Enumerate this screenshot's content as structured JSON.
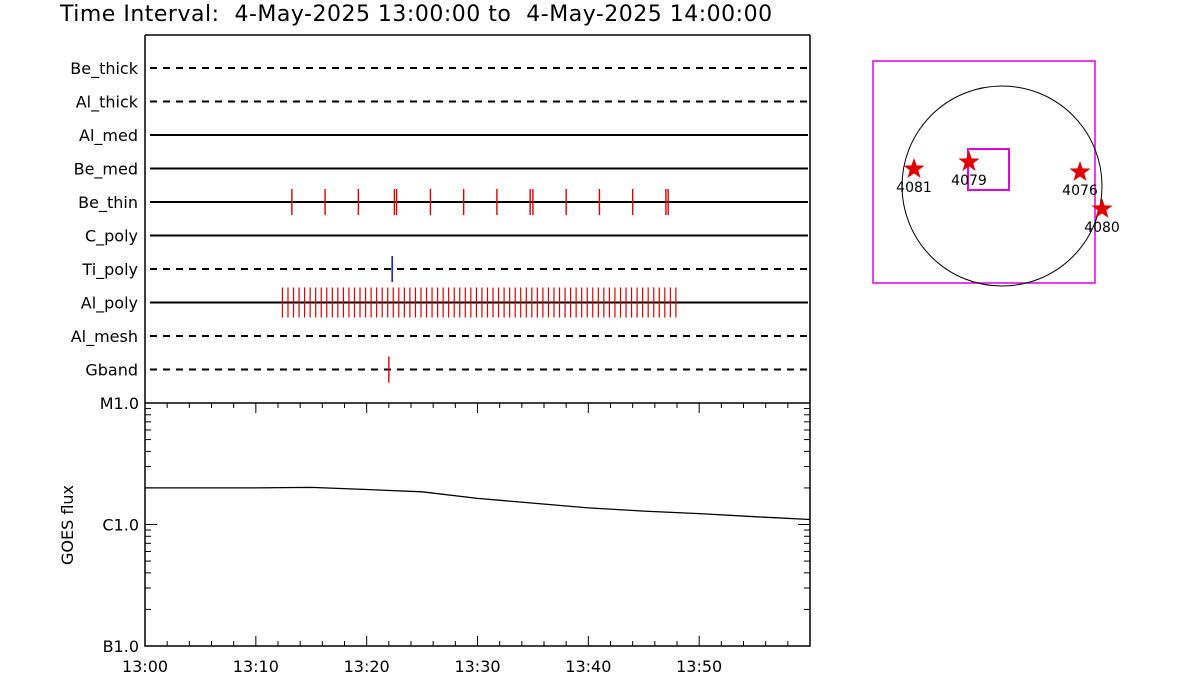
{
  "title": "Time Interval:  4-May-2025 13:00:00 to  4-May-2025 14:00:00",
  "colors": {
    "event": "#e00000",
    "event_blue": "#0000cc",
    "box": "#e000e0",
    "line": "#000000"
  },
  "chart_data": [
    {
      "type": "timeline",
      "time_range": [
        "13:00",
        "14:00"
      ],
      "rows": [
        {
          "name": "Be_thick",
          "style": "dashed",
          "events": []
        },
        {
          "name": "Al_thick",
          "style": "dashed",
          "events": []
        },
        {
          "name": "Al_med",
          "style": "solid",
          "events": []
        },
        {
          "name": "Be_med",
          "style": "solid",
          "events": []
        },
        {
          "name": "Be_thin",
          "style": "solid",
          "color": "#e00000",
          "events": [
            13.25,
            16.25,
            19.25,
            22.5,
            22.7,
            25.75,
            28.75,
            31.75,
            34.75,
            35.0,
            38.0,
            41.0,
            44.0,
            47.0,
            47.2
          ]
        },
        {
          "name": "C_poly",
          "style": "solid",
          "events": []
        },
        {
          "name": "Ti_poly",
          "style": "dashed",
          "color": "#0000cc",
          "events": [
            22.3
          ]
        },
        {
          "name": "Al_poly",
          "style": "solid",
          "color": "#e00000",
          "dense_start": 12.4,
          "dense_end": 47.9,
          "dense_step": 0.5,
          "events": []
        },
        {
          "name": "Al_mesh",
          "style": "dashed",
          "events": []
        },
        {
          "name": "Gband",
          "style": "dashed",
          "color": "#e00000",
          "events": [
            22.0
          ]
        }
      ]
    },
    {
      "type": "line",
      "ylabel": "GOES flux",
      "yscale": "log",
      "yticks": [
        "B1.0",
        "C1.0",
        "M1.0"
      ],
      "ylim": [
        1e-07,
        1e-05
      ],
      "xticks": [
        "13:00",
        "13:10",
        "13:20",
        "13:30",
        "13:40",
        "13:50"
      ],
      "x": [
        0,
        5,
        10,
        15,
        20,
        25,
        30,
        35,
        40,
        45,
        50,
        55,
        60
      ],
      "y": [
        2e-06,
        2e-06,
        2e-06,
        2.02e-06,
        1.94e-06,
        1.86e-06,
        1.64e-06,
        1.5e-06,
        1.37e-06,
        1.29e-06,
        1.23e-06,
        1.16e-06,
        1.1e-06
      ]
    },
    {
      "type": "scatter",
      "markers": [
        {
          "label": "4081",
          "x": -0.88,
          "y": 0.17
        },
        {
          "label": "4079",
          "x": -0.33,
          "y": 0.24
        },
        {
          "label": "4076",
          "x": 0.78,
          "y": 0.14
        },
        {
          "label": "4080",
          "x": 1.0,
          "y": -0.23
        }
      ]
    }
  ]
}
